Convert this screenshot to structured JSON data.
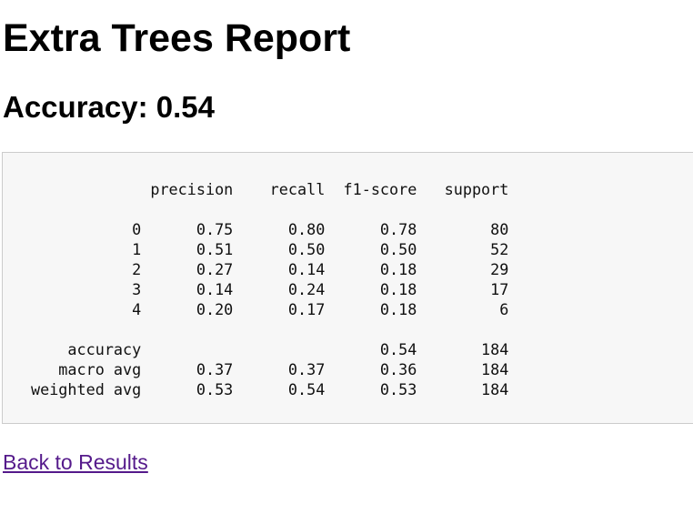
{
  "page": {
    "title": "Extra Trees Report",
    "accuracy_label": "Accuracy: ",
    "accuracy_value": "0.54"
  },
  "report": {
    "columns": [
      "precision",
      "recall",
      "f1-score",
      "support"
    ],
    "rows": [
      {
        "label": "0",
        "precision": "0.75",
        "recall": "0.80",
        "f1": "0.78",
        "support": "80"
      },
      {
        "label": "1",
        "precision": "0.51",
        "recall": "0.50",
        "f1": "0.50",
        "support": "52"
      },
      {
        "label": "2",
        "precision": "0.27",
        "recall": "0.14",
        "f1": "0.18",
        "support": "29"
      },
      {
        "label": "3",
        "precision": "0.14",
        "recall": "0.24",
        "f1": "0.18",
        "support": "17"
      },
      {
        "label": "4",
        "precision": "0.20",
        "recall": "0.17",
        "f1": "0.18",
        "support": "6"
      }
    ],
    "summary": [
      {
        "label": "accuracy",
        "precision": "",
        "recall": "",
        "f1": "0.54",
        "support": "184"
      },
      {
        "label": "macro avg",
        "precision": "0.37",
        "recall": "0.37",
        "f1": "0.36",
        "support": "184"
      },
      {
        "label": "weighted avg",
        "precision": "0.53",
        "recall": "0.54",
        "f1": "0.53",
        "support": "184"
      }
    ]
  },
  "links": {
    "back_label": "Back to Results"
  }
}
